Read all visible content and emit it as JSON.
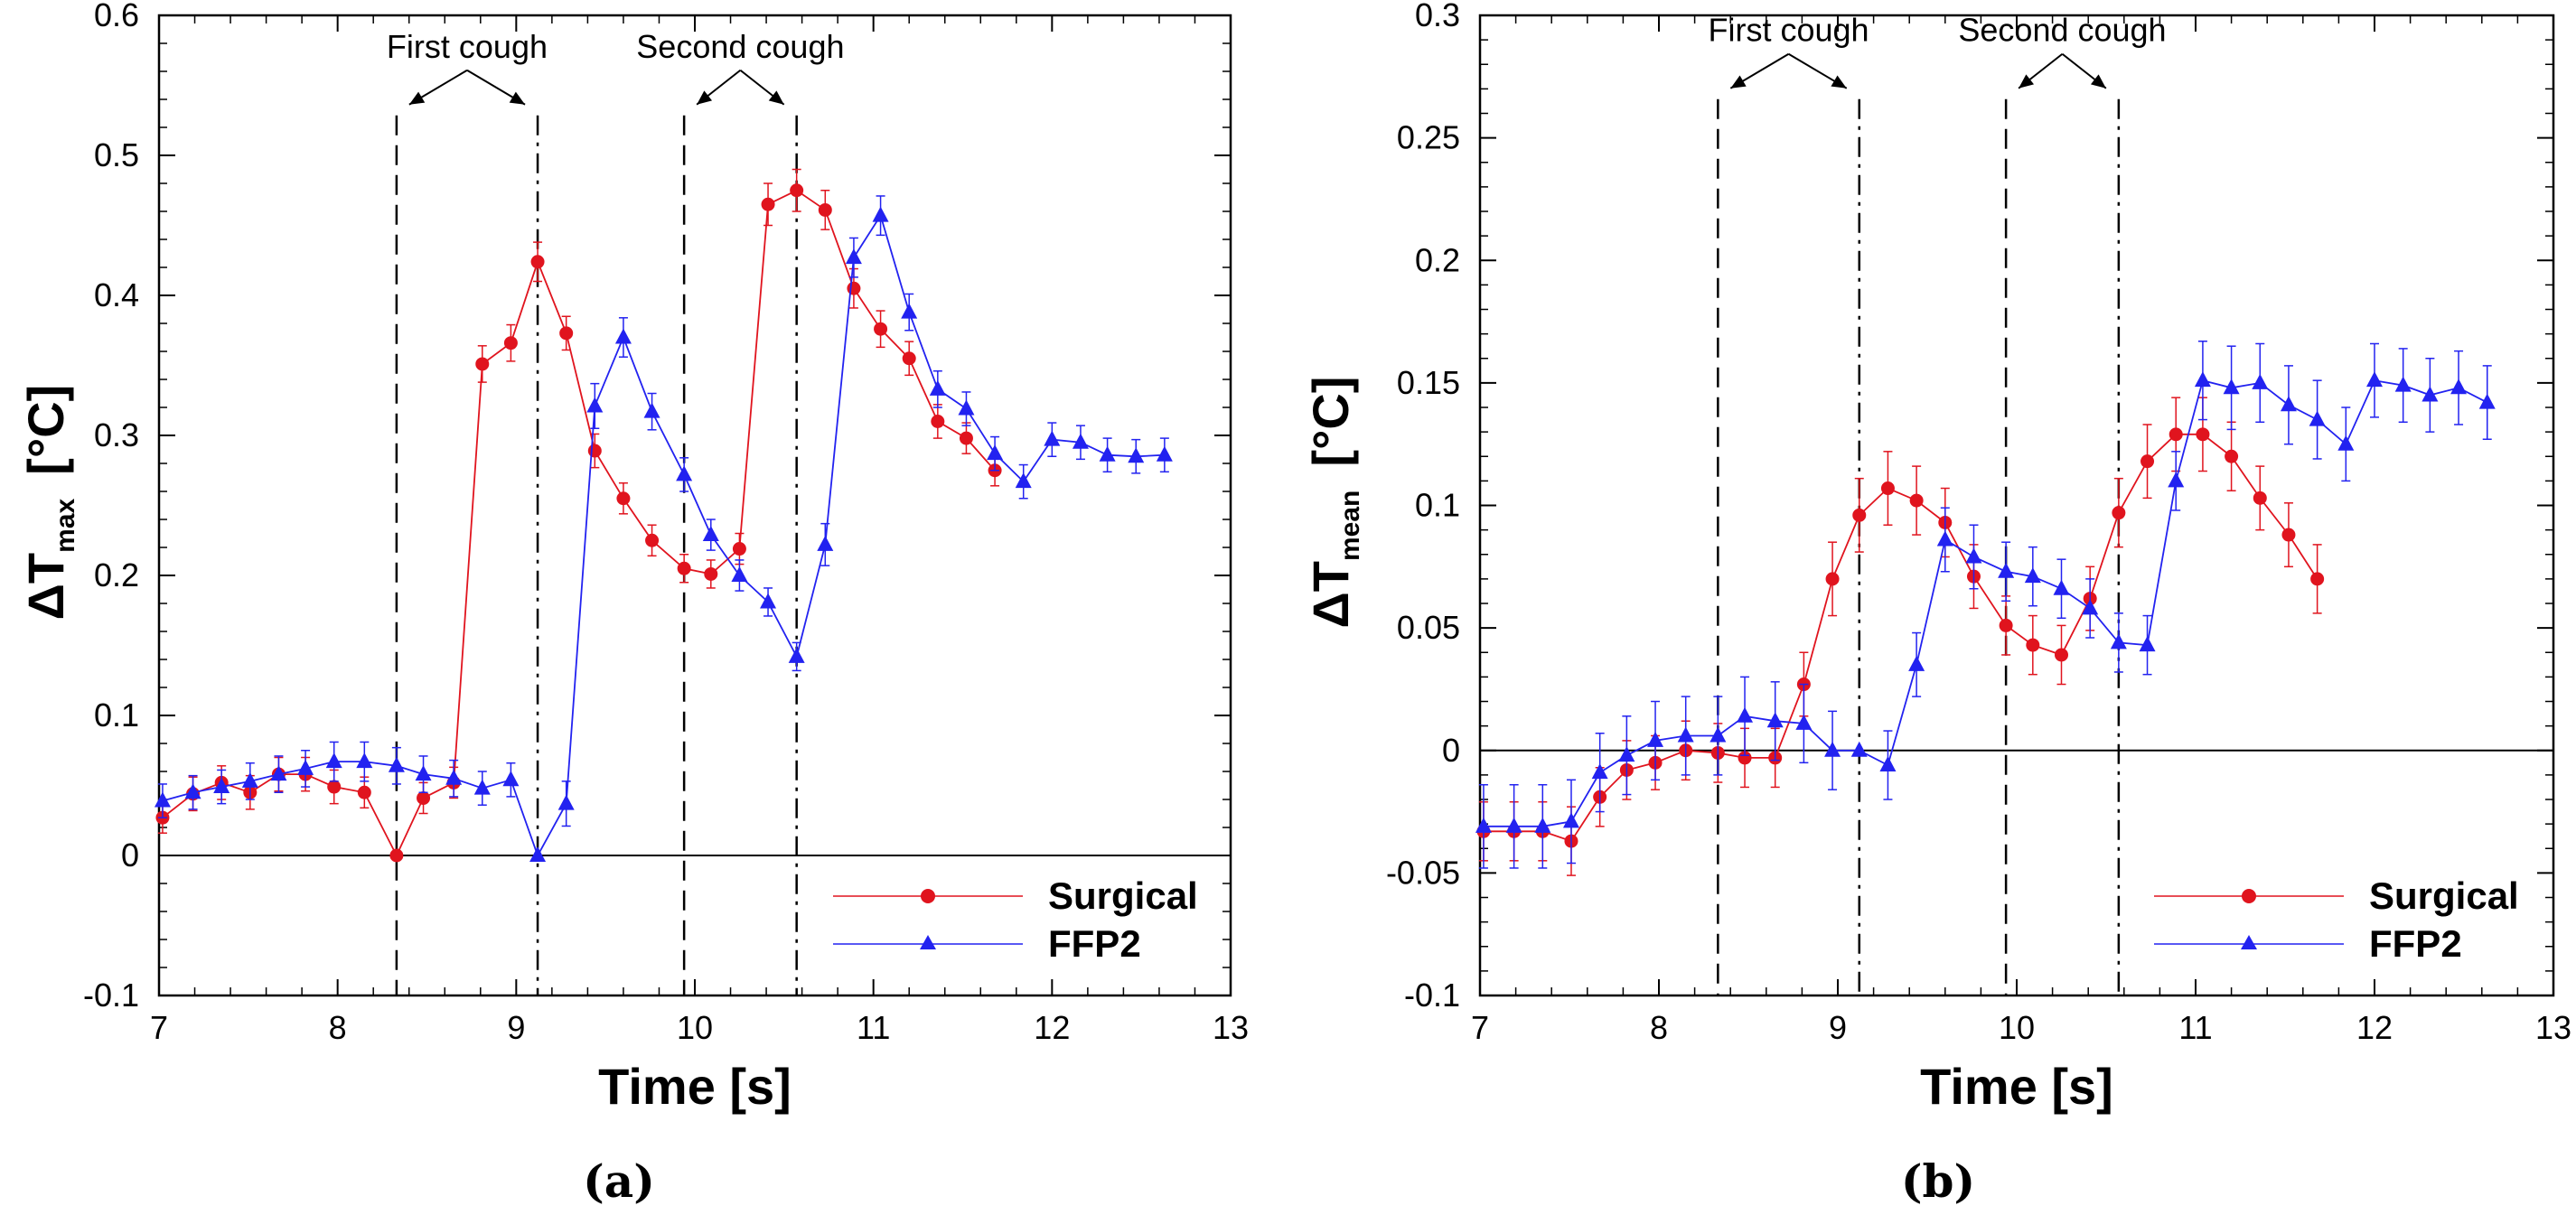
{
  "colors": {
    "surgical": "#e0141e",
    "ffp2": "#2222f0",
    "axis": "#000000"
  },
  "chart_data": [
    {
      "type": "line",
      "panel_label": "(a)",
      "xlabel": "Time  [s]",
      "ylabel_main": "ΔT",
      "ylabel_sub": "max",
      "ylabel_unit": "[°C]",
      "xlim": [
        7,
        13
      ],
      "ylim": [
        -0.1,
        0.6
      ],
      "xticks": [
        7,
        8,
        9,
        10,
        11,
        12,
        13
      ],
      "xtick_labels": [
        "7",
        "8",
        "9",
        "10",
        "11",
        "12",
        "13"
      ],
      "yticks": [
        -0.1,
        0,
        0.1,
        0.2,
        0.3,
        0.4,
        0.5,
        0.6
      ],
      "ytick_labels": [
        "-0.1",
        "0",
        "0.1",
        "0.2",
        "0.3",
        "0.4",
        "0.5",
        "0.6"
      ],
      "zero_line": 0,
      "vlines": [
        {
          "x": 8.33,
          "style": "dashed"
        },
        {
          "x": 9.12,
          "style": "dashdot"
        },
        {
          "x": 9.94,
          "style": "dashed"
        },
        {
          "x": 10.57,
          "style": "dashdot"
        }
      ],
      "annotations": [
        {
          "text": "First cough",
          "x1": 8.33,
          "x2": 9.12,
          "y": 0.535
        },
        {
          "text": "Second cough",
          "x1": 9.94,
          "x2": 10.57,
          "y": 0.535
        }
      ],
      "legend": [
        "Surgical",
        "FFP2"
      ],
      "legend_position": "bottom-right",
      "series": [
        {
          "name": "Surgical",
          "marker": "circle",
          "x": [
            7.02,
            7.19,
            7.35,
            7.51,
            7.67,
            7.82,
            7.98,
            8.15,
            8.33,
            8.48,
            8.65,
            8.81,
            8.97,
            9.12,
            9.28,
            9.44,
            9.6,
            9.76,
            9.94,
            10.09,
            10.25,
            10.41,
            10.57,
            10.73,
            10.89,
            11.04,
            11.2,
            11.36,
            11.52,
            11.68
          ],
          "y": [
            0.027,
            0.044,
            0.052,
            0.045,
            0.058,
            0.058,
            0.049,
            0.045,
            0.0,
            0.041,
            0.052,
            0.351,
            0.366,
            0.424,
            0.373,
            0.289,
            0.255,
            0.225,
            0.205,
            0.201,
            0.219,
            0.465,
            0.475,
            0.461,
            0.405,
            0.376,
            0.355,
            0.31,
            0.298,
            0.275
          ],
          "err": [
            0.011,
            0.012,
            0.012,
            0.012,
            0.012,
            0.012,
            0.012,
            0.011,
            0.0,
            0.011,
            0.011,
            0.013,
            0.013,
            0.014,
            0.012,
            0.012,
            0.011,
            0.011,
            0.01,
            0.01,
            0.011,
            0.015,
            0.015,
            0.014,
            0.014,
            0.013,
            0.012,
            0.012,
            0.011,
            0.011
          ]
        },
        {
          "name": "FFP2",
          "marker": "triangle",
          "x": [
            7.02,
            7.19,
            7.35,
            7.51,
            7.67,
            7.82,
            7.98,
            8.15,
            8.33,
            8.48,
            8.65,
            8.81,
            8.97,
            9.12,
            9.28,
            9.44,
            9.6,
            9.76,
            9.94,
            10.09,
            10.25,
            10.41,
            10.57,
            10.73,
            10.89,
            11.04,
            11.2,
            11.36,
            11.52,
            11.68,
            11.84,
            12.0,
            12.16,
            12.31,
            12.47,
            12.63
          ],
          "y": [
            0.039,
            0.045,
            0.049,
            0.053,
            0.058,
            0.062,
            0.067,
            0.067,
            0.064,
            0.058,
            0.055,
            0.048,
            0.054,
            0.0,
            0.037,
            0.321,
            0.37,
            0.317,
            0.272,
            0.229,
            0.2,
            0.181,
            0.142,
            0.222,
            0.427,
            0.457,
            0.388,
            0.333,
            0.319,
            0.287,
            0.267,
            0.297,
            0.295,
            0.286,
            0.285,
            0.286
          ],
          "err": [
            0.012,
            0.012,
            0.012,
            0.013,
            0.013,
            0.013,
            0.014,
            0.014,
            0.013,
            0.013,
            0.013,
            0.012,
            0.012,
            0.0,
            0.016,
            0.016,
            0.014,
            0.013,
            0.012,
            0.011,
            0.011,
            0.01,
            0.01,
            0.015,
            0.014,
            0.014,
            0.013,
            0.013,
            0.012,
            0.012,
            0.012,
            0.012,
            0.012,
            0.012,
            0.012,
            0.012
          ]
        }
      ]
    },
    {
      "type": "line",
      "panel_label": "(b)",
      "xlabel": "Time  [s]",
      "ylabel_main": "ΔT",
      "ylabel_sub": "mean",
      "ylabel_unit": "[°C]",
      "xlim": [
        7,
        13
      ],
      "ylim": [
        -0.1,
        0.3
      ],
      "xticks": [
        7,
        8,
        9,
        10,
        11,
        12,
        13
      ],
      "xtick_labels": [
        "7",
        "8",
        "9",
        "10",
        "11",
        "12",
        "13"
      ],
      "yticks": [
        -0.1,
        -0.05,
        0,
        0.05,
        0.1,
        0.15,
        0.2,
        0.25,
        0.3
      ],
      "ytick_labels": [
        "-0.1",
        "-0.05",
        "0",
        "0.05",
        "0.1",
        "0.15",
        "0.2",
        "0.25",
        "0.3"
      ],
      "zero_line": 0,
      "vlines": [
        {
          "x": 8.33,
          "style": "dashed"
        },
        {
          "x": 9.12,
          "style": "dashdot"
        },
        {
          "x": 9.94,
          "style": "dashed"
        },
        {
          "x": 10.57,
          "style": "dashdot"
        }
      ],
      "annotations": [
        {
          "text": "First cough",
          "x1": 8.33,
          "x2": 9.12,
          "y": 0.2695
        },
        {
          "text": "Second cough",
          "x1": 9.94,
          "x2": 10.57,
          "y": 0.2695
        }
      ],
      "legend": [
        "Surgical",
        "FFP2"
      ],
      "legend_position": "bottom-right",
      "series": [
        {
          "name": "Surgical",
          "marker": "circle",
          "x": [
            7.02,
            7.19,
            7.35,
            7.51,
            7.67,
            7.82,
            7.98,
            8.15,
            8.33,
            8.48,
            8.65,
            8.81,
            8.97,
            9.12,
            9.28,
            9.44,
            9.6,
            9.76,
            9.94,
            10.09,
            10.25,
            10.41,
            10.57,
            10.73,
            10.89,
            11.04,
            11.2,
            11.36,
            11.52,
            11.68
          ],
          "y": [
            -0.033,
            -0.033,
            -0.033,
            -0.037,
            -0.019,
            -0.008,
            -0.005,
            0.0,
            -0.001,
            -0.003,
            -0.003,
            0.027,
            0.07,
            0.096,
            0.107,
            0.102,
            0.093,
            0.071,
            0.051,
            0.043,
            0.039,
            0.062,
            0.097,
            0.118,
            0.129,
            0.129,
            0.12,
            0.103,
            0.088,
            0.07
          ],
          "err": [
            0.012,
            0.012,
            0.012,
            0.014,
            0.012,
            0.012,
            0.011,
            0.012,
            0.012,
            0.012,
            0.012,
            0.013,
            0.015,
            0.015,
            0.015,
            0.014,
            0.014,
            0.013,
            0.012,
            0.012,
            0.012,
            0.013,
            0.014,
            0.015,
            0.015,
            0.015,
            0.014,
            0.013,
            0.013,
            0.014
          ]
        },
        {
          "name": "FFP2",
          "marker": "triangle",
          "x": [
            7.02,
            7.19,
            7.35,
            7.51,
            7.67,
            7.82,
            7.98,
            8.15,
            8.33,
            8.48,
            8.65,
            8.81,
            8.97,
            9.12,
            9.28,
            9.44,
            9.6,
            9.76,
            9.94,
            10.09,
            10.25,
            10.41,
            10.57,
            10.73,
            10.89,
            11.04,
            11.2,
            11.36,
            11.52,
            11.68,
            11.84,
            12.0,
            12.16,
            12.31,
            12.47,
            12.63
          ],
          "y": [
            -0.031,
            -0.031,
            -0.031,
            -0.029,
            -0.009,
            -0.002,
            0.004,
            0.006,
            0.006,
            0.014,
            0.012,
            0.011,
            0.0,
            0.0,
            -0.006,
            0.035,
            0.086,
            0.079,
            0.073,
            0.071,
            0.066,
            0.058,
            0.044,
            0.043,
            0.11,
            0.151,
            0.148,
            0.15,
            0.141,
            0.135,
            0.125,
            0.151,
            0.149,
            0.145,
            0.148,
            0.142
          ],
          "err": [
            0.017,
            0.017,
            0.017,
            0.017,
            0.016,
            0.016,
            0.016,
            0.016,
            0.016,
            0.016,
            0.016,
            0.016,
            0.016,
            0.0,
            0.014,
            0.013,
            0.013,
            0.013,
            0.012,
            0.012,
            0.012,
            0.012,
            0.012,
            0.012,
            0.012,
            0.016,
            0.017,
            0.016,
            0.016,
            0.016,
            0.015,
            0.015,
            0.015,
            0.015,
            0.015,
            0.015
          ]
        }
      ]
    }
  ]
}
